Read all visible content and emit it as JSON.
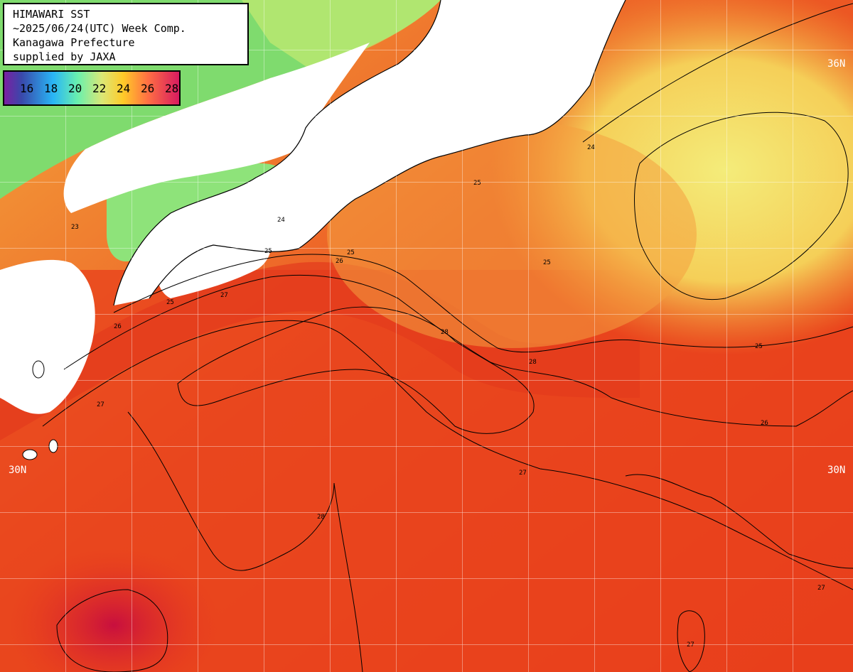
{
  "title": {
    "line1": "HIMAWARI SST",
    "line2": "~2025/06/24(UTC) Week Comp.",
    "line3": "Kanagawa Prefecture",
    "line4": "supplied by JAXA"
  },
  "legend": {
    "labels": [
      "16",
      "18",
      "20",
      "22",
      "24",
      "26",
      "28"
    ]
  },
  "lat_labels": {
    "top_right": "36N",
    "mid_left": "30N",
    "mid_right": "30N"
  },
  "contour_labels": [
    "23",
    "24",
    "25",
    "25",
    "25",
    "26",
    "26",
    "27",
    "27",
    "27",
    "28",
    "28",
    "25",
    "25",
    "26",
    "27",
    "27",
    "28",
    "24",
    "25"
  ],
  "colors": {
    "land": "#ffffff",
    "warm_sea": "#e8401c",
    "hot_sea": "#c0143c",
    "mid_sea": "#f59a2e",
    "cool_sea": "#f3e774",
    "cold_sea": "#7de07a"
  }
}
